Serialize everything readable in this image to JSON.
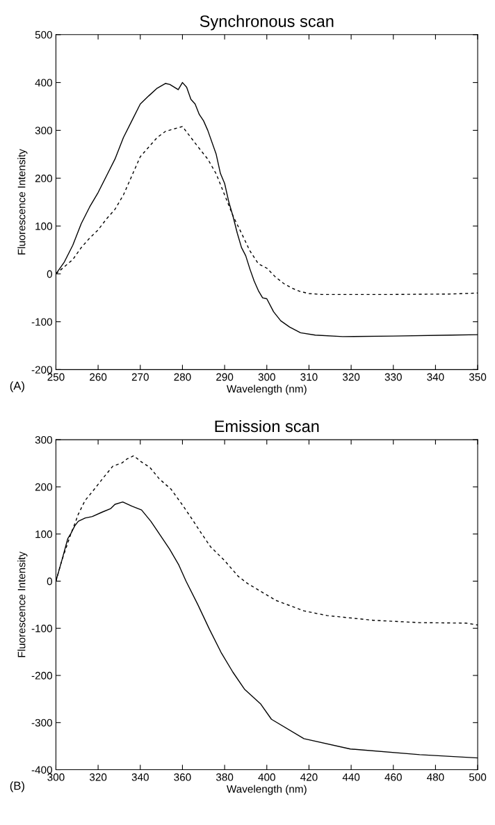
{
  "chart_data": [
    {
      "type": "line",
      "title": "Synchronous scan",
      "xlabel": "Wavelength (nm)",
      "ylabel": "Fluorescence Intensity",
      "annotations": [
        "(A)"
      ],
      "xlim": [
        250,
        350
      ],
      "xticks": [
        250,
        260,
        270,
        280,
        290,
        300,
        310,
        320,
        330,
        340,
        350
      ],
      "ylim": [
        -200,
        500
      ],
      "yticks": [
        -200,
        -100,
        0,
        100,
        200,
        300,
        400,
        500
      ],
      "grid": false,
      "legend": false,
      "series": [
        {
          "color": "#000000",
          "line_style": "solid",
          "x": [
            250,
            252,
            254,
            256,
            258,
            260,
            262,
            264,
            266,
            268,
            270,
            272,
            274,
            276,
            277,
            279,
            280,
            281,
            282,
            283,
            284,
            285,
            286,
            288,
            289,
            290,
            291,
            292,
            293,
            294,
            295,
            296,
            297,
            298,
            299,
            300,
            301.6,
            303.3,
            305.4,
            308,
            311.5,
            318,
            330,
            343.7,
            350
          ],
          "values": [
            0,
            25,
            60,
            105,
            140,
            170,
            205,
            240,
            285,
            320,
            355,
            372,
            388,
            398,
            396,
            385,
            400,
            390,
            365,
            355,
            333,
            320,
            300,
            250,
            210,
            189,
            150,
            120,
            85,
            55,
            38,
            10,
            -15,
            -35,
            -50,
            -52,
            -79,
            -98,
            -111,
            -123,
            -128,
            -131,
            -130,
            -128,
            -127
          ]
        },
        {
          "color": "#000000",
          "line_style": "dashed",
          "x": [
            250,
            252,
            254,
            256,
            258,
            260,
            262,
            264,
            266,
            268,
            270,
            272,
            274,
            276,
            278,
            280,
            282,
            284,
            286,
            288,
            290,
            292,
            294,
            296,
            298,
            300,
            302,
            304,
            306,
            308,
            310,
            313,
            320,
            330,
            343.7,
            350
          ],
          "values": [
            0,
            15,
            30,
            55,
            75,
            92,
            115,
            135,
            165,
            205,
            245,
            265,
            285,
            298,
            303,
            308,
            285,
            262,
            240,
            209,
            165,
            121,
            85,
            48,
            21,
            12,
            -6,
            -20,
            -30,
            -37,
            -41,
            -43,
            -43,
            -43,
            -42,
            -40
          ]
        }
      ]
    },
    {
      "type": "line",
      "title": "Emission scan",
      "xlabel": "Wavelength (nm)",
      "ylabel": "Fluorescence Intensity",
      "annotations": [
        "(B)"
      ],
      "xlim": [
        300,
        500
      ],
      "xticks": [
        300,
        320,
        340,
        360,
        380,
        400,
        420,
        440,
        460,
        480,
        500
      ],
      "ylim": [
        -400,
        300
      ],
      "yticks": [
        -400,
        -300,
        -200,
        -100,
        0,
        100,
        200,
        300
      ],
      "grid": false,
      "legend": false,
      "series": [
        {
          "color": "#000000",
          "line_style": "solid",
          "x": [
            300,
            302.8,
            305.6,
            307.2,
            308.9,
            310.6,
            313.9,
            317.2,
            321.7,
            326,
            328,
            331.7,
            336,
            340.6,
            345,
            349.4,
            353.9,
            358.3,
            361.7,
            367.2,
            372.8,
            378.3,
            383.9,
            389.4,
            397,
            402.2,
            417.6,
            439.6,
            472.5,
            500
          ],
          "values": [
            0,
            44,
            90,
            102,
            117,
            127,
            134,
            137,
            146,
            154,
            163,
            168,
            159,
            151,
            127,
            98,
            68,
            34,
            0,
            -49,
            -102,
            -151,
            -193,
            -229,
            -260,
            -293,
            -334,
            -356,
            -368,
            -375
          ]
        },
        {
          "color": "#000000",
          "line_style": "dashed",
          "x": [
            300,
            302.8,
            307.2,
            309.4,
            310.5,
            313.8,
            318.2,
            322.6,
            327,
            331.4,
            333.6,
            336.9,
            340.2,
            344.6,
            349,
            354.6,
            360.1,
            364.5,
            368.9,
            373.3,
            379.9,
            386.5,
            390.9,
            396.5,
            404.4,
            417.6,
            428.6,
            450.5,
            472.5,
            494.5,
            500
          ],
          "values": [
            0,
            44,
            102,
            127,
            141,
            171,
            195,
            220,
            244,
            251,
            259,
            266,
            254,
            241,
            217,
            195,
            161,
            132,
            102,
            73,
            44,
            10,
            -5,
            -20,
            -41,
            -63,
            -73,
            -83,
            -88,
            -89,
            -93
          ]
        }
      ]
    }
  ]
}
